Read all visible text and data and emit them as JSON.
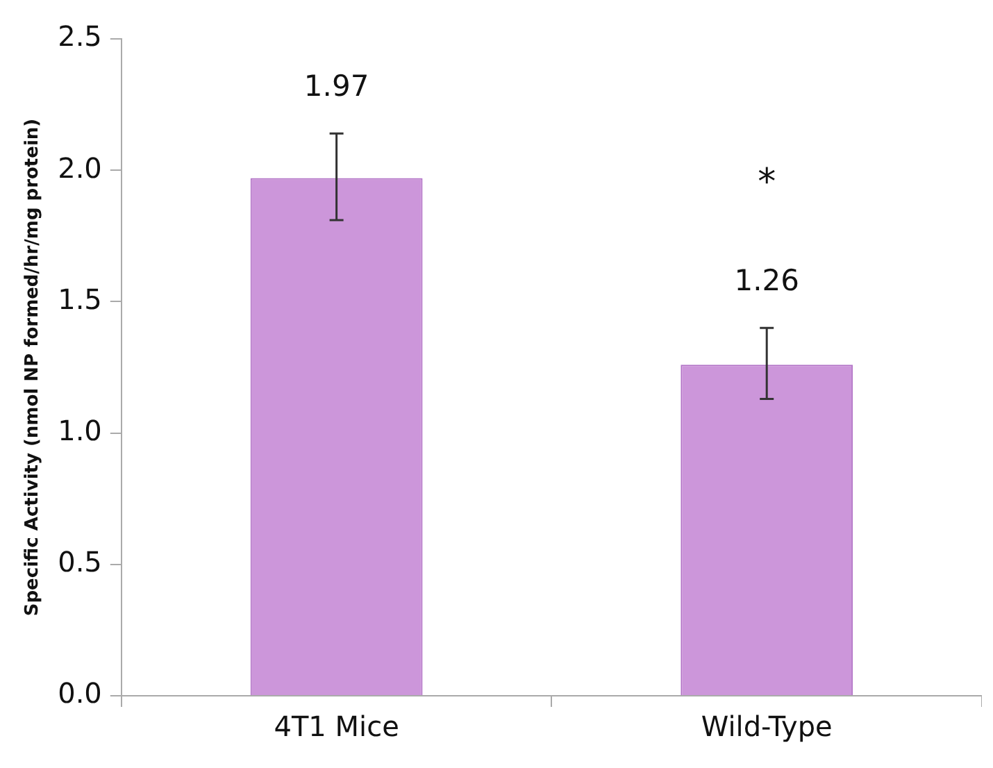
{
  "chart_data": {
    "type": "bar",
    "ylabel": "Specific Activity (nmol NP formed/hr/mg protein)",
    "categories": [
      "4T1 Mice",
      "Wild-Type"
    ],
    "series": [
      {
        "color": "#cc96da",
        "values": [
          1.97,
          1.26
        ],
        "errors": [
          [
            1.81,
            2.14
          ],
          [
            1.13,
            1.4
          ]
        ]
      }
    ],
    "data_labels": true,
    "annotations": [
      "*"
    ],
    "ylim": [
      0,
      2.5
    ],
    "yticks": [
      {
        "value": 0,
        "label": "0.0"
      },
      {
        "value": 0.5,
        "label": "0.5"
      },
      {
        "value": 1,
        "label": "1.0"
      },
      {
        "value": 1.5,
        "label": "1.5"
      },
      {
        "value": 2,
        "label": "2.0"
      },
      {
        "value": 2.5,
        "label": "2.5"
      }
    ],
    "grid": false,
    "legend": false
  }
}
